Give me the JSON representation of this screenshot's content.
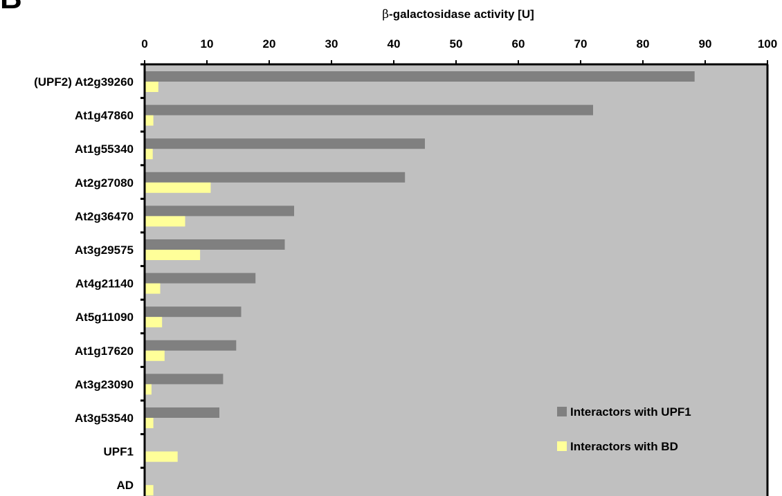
{
  "panel_label": "B",
  "chart_data": {
    "type": "bar",
    "orientation": "horizontal",
    "title": "",
    "xlabel_symbol": "β",
    "xlabel_text": "-galactosidase activity [U]",
    "ylabel": "",
    "xlim": [
      0,
      100
    ],
    "x_ticks": [
      "0",
      "10",
      "20",
      "30",
      "40",
      "50",
      "60",
      "70",
      "80",
      "90",
      "100"
    ],
    "x_axis_position": "top",
    "grid": false,
    "legend_position": "bottom-right",
    "background_color": "#c0c0c0",
    "categories": [
      "(UPF2) At2g39260",
      "At1g47860",
      "At1g55340",
      "At2g27080",
      "At2g36470",
      "At3g29575",
      "At4g21140",
      "At5g11090",
      "At1g17620",
      "At3g23090",
      "At3g53540",
      "UPF1",
      "AD"
    ],
    "series": [
      {
        "name": "Interactors with UPF1",
        "color": "#808080",
        "values": [
          88.3,
          72.0,
          45.0,
          41.8,
          24.0,
          22.5,
          17.8,
          15.5,
          14.7,
          12.6,
          12.0,
          0,
          0
        ]
      },
      {
        "name": "Interactors with BD",
        "color": "#ffff99",
        "values": [
          2.2,
          1.4,
          1.3,
          10.6,
          6.5,
          8.9,
          2.5,
          2.8,
          3.2,
          1.1,
          1.4,
          5.3,
          1.4
        ]
      }
    ]
  }
}
